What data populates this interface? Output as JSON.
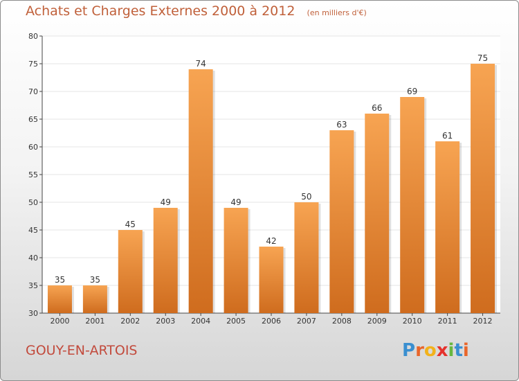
{
  "header": {
    "title": "Achats et Charges Externes 2000 à 2012",
    "unit": "(en milliers d'€)"
  },
  "footer": {
    "commune": "GOUY-EN-ARTOIS",
    "logo_text": "Proxiti",
    "logo_letters": [
      {
        "ch": "P",
        "color": "#3a8fd0"
      },
      {
        "ch": "r",
        "color": "#e9662b"
      },
      {
        "ch": "o",
        "color": "#f2b21b"
      },
      {
        "ch": "x",
        "color": "#e5322d"
      },
      {
        "ch": "i",
        "color": "#67b73f"
      },
      {
        "ch": "t",
        "color": "#3a8fd0"
      },
      {
        "ch": "i",
        "color": "#e9662b"
      }
    ]
  },
  "colors": {
    "bar_top": "#f7a452",
    "bar_bottom": "#cf6c1e",
    "grid": "#e6e6e6",
    "title": "#c0603a"
  },
  "chart_data": {
    "type": "bar",
    "title": "Achats et Charges Externes 2000 à 2012",
    "subtitle": "(en milliers d'€)",
    "categories": [
      "2000",
      "2001",
      "2002",
      "2003",
      "2004",
      "2005",
      "2006",
      "2007",
      "2008",
      "2009",
      "2010",
      "2011",
      "2012"
    ],
    "values": [
      35,
      35,
      45,
      49,
      74,
      49,
      42,
      50,
      63,
      66,
      69,
      61,
      75
    ],
    "ylim": [
      30,
      80
    ],
    "yticks": [
      30,
      35,
      40,
      45,
      50,
      55,
      60,
      65,
      70,
      75,
      80
    ],
    "grid": true
  }
}
